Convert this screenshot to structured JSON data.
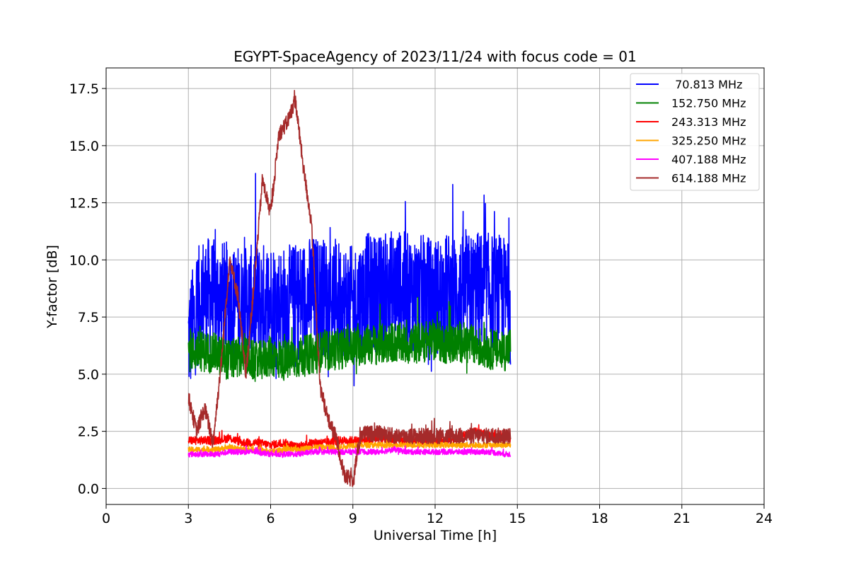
{
  "chart_data": {
    "type": "line",
    "title": "EGYPT-SpaceAgency of 2023/11/24 with focus code = 01",
    "xlabel": "Universal Time [h]",
    "ylabel": "Y-factor [dB]",
    "xlim": [
      0,
      24
    ],
    "ylim": [
      -0.7,
      18.4
    ],
    "xticks": [
      0,
      3,
      6,
      9,
      12,
      15,
      18,
      21,
      24
    ],
    "xtick_labels": [
      "0",
      "3",
      "6",
      "9",
      "12",
      "15",
      "18",
      "21",
      "24"
    ],
    "yticks": [
      0.0,
      2.5,
      5.0,
      7.5,
      10.0,
      12.5,
      15.0,
      17.5
    ],
    "ytick_labels": [
      "0.0",
      "2.5",
      "5.0",
      "7.5",
      "10.0",
      "12.5",
      "15.0",
      "17.5"
    ],
    "grid": true,
    "legend_position": "top-right",
    "series": [
      {
        "name": " 70.813 MHz",
        "color": "#0000ff",
        "noise": 2.6,
        "x": [
          3.0,
          3.5,
          4.0,
          4.5,
          5.0,
          5.5,
          6.0,
          6.5,
          7.0,
          7.5,
          8.0,
          8.5,
          9.0,
          9.5,
          10.0,
          10.5,
          11.0,
          11.5,
          12.0,
          12.5,
          13.0,
          13.5,
          14.0,
          14.5,
          14.75
        ],
        "y": [
          6.5,
          8.5,
          8.3,
          8.2,
          8.0,
          8.1,
          8.3,
          8.0,
          8.2,
          8.5,
          8.4,
          8.3,
          8.0,
          8.6,
          8.5,
          8.8,
          8.6,
          8.5,
          8.4,
          8.6,
          8.5,
          8.7,
          8.6,
          8.5,
          8.0
        ]
      },
      {
        "name": "152.750 MHz",
        "color": "#008000",
        "noise": 0.9,
        "x": [
          3.0,
          3.5,
          4.0,
          4.5,
          5.0,
          5.5,
          6.0,
          6.5,
          7.0,
          7.5,
          8.0,
          8.5,
          9.0,
          9.5,
          10.0,
          10.5,
          11.0,
          11.5,
          12.0,
          12.5,
          13.0,
          13.5,
          14.0,
          14.5,
          14.75
        ],
        "y": [
          6.0,
          6.0,
          5.9,
          5.6,
          5.8,
          5.5,
          5.8,
          5.6,
          5.7,
          5.9,
          6.0,
          6.1,
          6.2,
          6.3,
          6.3,
          6.4,
          6.3,
          6.4,
          6.5,
          6.3,
          6.4,
          6.2,
          6.1,
          6.0,
          6.2
        ]
      },
      {
        "name": "243.313 MHz",
        "color": "#ff0000",
        "noise": 0.18,
        "x": [
          3.0,
          3.5,
          4.0,
          4.5,
          5.0,
          5.5,
          6.0,
          6.5,
          7.0,
          7.5,
          8.0,
          8.5,
          9.0,
          9.5,
          10.0,
          10.5,
          11.0,
          11.5,
          12.0,
          12.5,
          13.0,
          13.5,
          14.0,
          14.5,
          14.75
        ],
        "y": [
          2.1,
          2.1,
          2.1,
          2.2,
          2.0,
          2.0,
          1.9,
          2.0,
          1.8,
          2.0,
          2.0,
          2.1,
          2.1,
          2.1,
          2.2,
          2.1,
          2.1,
          2.1,
          2.1,
          2.1,
          2.3,
          2.5,
          2.3,
          2.2,
          2.2
        ]
      },
      {
        "name": "325.250 MHz",
        "color": "#ffa500",
        "noise": 0.12,
        "x": [
          3.0,
          3.5,
          4.0,
          4.5,
          5.0,
          5.5,
          6.0,
          6.5,
          7.0,
          7.5,
          8.0,
          8.5,
          9.0,
          9.5,
          10.0,
          10.5,
          11.0,
          11.5,
          12.0,
          12.5,
          13.0,
          13.5,
          14.0,
          14.5,
          14.75
        ],
        "y": [
          1.7,
          1.7,
          1.7,
          1.8,
          1.7,
          1.7,
          1.6,
          1.7,
          1.7,
          1.8,
          1.8,
          1.8,
          1.9,
          1.9,
          1.9,
          1.9,
          1.9,
          1.9,
          1.9,
          1.9,
          1.9,
          1.9,
          1.9,
          1.9,
          1.9
        ]
      },
      {
        "name": "407.188 MHz",
        "color": "#ff00ff",
        "noise": 0.12,
        "x": [
          3.0,
          3.5,
          4.0,
          4.5,
          5.0,
          5.5,
          6.0,
          6.5,
          7.0,
          7.5,
          8.0,
          8.5,
          9.0,
          9.5,
          10.0,
          10.5,
          11.0,
          11.5,
          12.0,
          12.5,
          13.0,
          13.5,
          14.0,
          14.5,
          14.75
        ],
        "y": [
          1.5,
          1.5,
          1.5,
          1.6,
          1.6,
          1.6,
          1.5,
          1.5,
          1.5,
          1.6,
          1.6,
          1.6,
          1.6,
          1.6,
          1.6,
          1.7,
          1.6,
          1.6,
          1.6,
          1.6,
          1.6,
          1.6,
          1.6,
          1.5,
          1.5
        ]
      },
      {
        "name": "614.188 MHz",
        "color": "#a52a2a",
        "noise": 0.35,
        "x": [
          3.0,
          3.3,
          3.6,
          3.9,
          4.2,
          4.5,
          4.8,
          5.1,
          5.4,
          5.7,
          6.0,
          6.3,
          6.6,
          6.9,
          7.2,
          7.5,
          7.8,
          8.1,
          8.4,
          8.7,
          9.0,
          9.3,
          9.6,
          10.0,
          10.5,
          11.0,
          11.5,
          12.0,
          12.5,
          13.0,
          13.5,
          14.0,
          14.5,
          14.75
        ],
        "y": [
          4.0,
          2.5,
          3.5,
          2.0,
          5.5,
          10.0,
          8.5,
          5.0,
          9.0,
          13.5,
          12.0,
          15.5,
          16.0,
          17.0,
          14.0,
          11.5,
          4.5,
          3.0,
          2.2,
          0.5,
          0.4,
          2.4,
          2.4,
          2.4,
          2.3,
          2.3,
          2.3,
          2.3,
          2.3,
          2.3,
          2.3,
          2.3,
          2.3,
          2.3
        ]
      }
    ]
  }
}
